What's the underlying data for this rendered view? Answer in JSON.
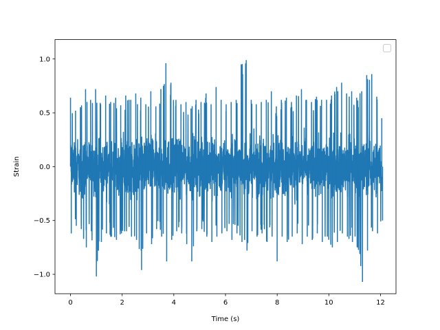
{
  "chart_data": {
    "type": "line",
    "title": "",
    "xlabel": "Time (s)",
    "ylabel": "Strain",
    "xlim": [
      -0.6,
      12.6
    ],
    "ylim": [
      -1.18,
      1.18
    ],
    "xticks": [
      0,
      2,
      4,
      6,
      8,
      10,
      12
    ],
    "xtick_labels": [
      "0",
      "2",
      "4",
      "6",
      "8",
      "10",
      "12"
    ],
    "yticks": [
      -1.0,
      -0.5,
      0.0,
      0.5,
      1.0
    ],
    "ytick_labels": [
      "−1.0",
      "−0.5",
      "0.0",
      "0.5",
      "1.0"
    ],
    "grid": false,
    "legend": {
      "placement": "top-right",
      "entries": []
    },
    "series": [
      {
        "color": "#1f77b4",
        "x_range": [
          0,
          12.05
        ],
        "envelope_top": [
          0.64,
          0.52,
          0.55,
          0.72,
          0.62,
          0.72,
          0.58,
          0.66,
          0.6,
          0.64,
          0.57,
          0.66,
          0.62,
          0.68,
          0.64,
          0.58,
          0.7,
          0.56,
          0.72,
          0.96,
          0.78,
          0.62,
          0.58,
          0.6,
          0.54,
          0.62,
          0.6,
          0.68,
          0.58,
          0.74,
          0.62,
          0.58,
          0.6,
          0.62,
          0.95,
          0.99,
          0.62,
          0.58,
          0.6,
          0.62,
          0.7,
          0.56,
          0.62,
          0.64,
          0.6,
          0.66,
          0.72,
          0.62,
          0.6,
          0.65,
          0.62,
          0.62,
          0.66,
          0.74,
          0.78,
          0.68,
          0.7,
          0.64,
          0.7,
          0.85,
          0.86,
          0.65,
          0.45
        ],
        "envelope_bottom": [
          -0.62,
          -0.55,
          -0.58,
          -0.75,
          -0.6,
          -1.02,
          -0.7,
          -0.62,
          -0.65,
          -0.68,
          -0.62,
          -0.6,
          -0.65,
          -0.68,
          -0.96,
          -0.62,
          -0.72,
          -0.58,
          -0.65,
          -0.88,
          -0.68,
          -0.6,
          -0.62,
          -0.72,
          -0.88,
          -0.6,
          -0.58,
          -0.65,
          -0.7,
          -0.65,
          -0.62,
          -0.6,
          -0.68,
          -0.62,
          -0.7,
          -0.78,
          -0.6,
          -0.65,
          -0.62,
          -0.7,
          -0.65,
          -0.88,
          -0.65,
          -0.7,
          -0.65,
          -0.62,
          -0.72,
          -0.65,
          -0.68,
          -0.62,
          -0.7,
          -0.65,
          -0.75,
          -0.7,
          -0.62,
          -0.65,
          -0.7,
          -0.75,
          -1.07,
          -0.78,
          -0.6,
          -0.62,
          -0.5
        ]
      }
    ]
  }
}
